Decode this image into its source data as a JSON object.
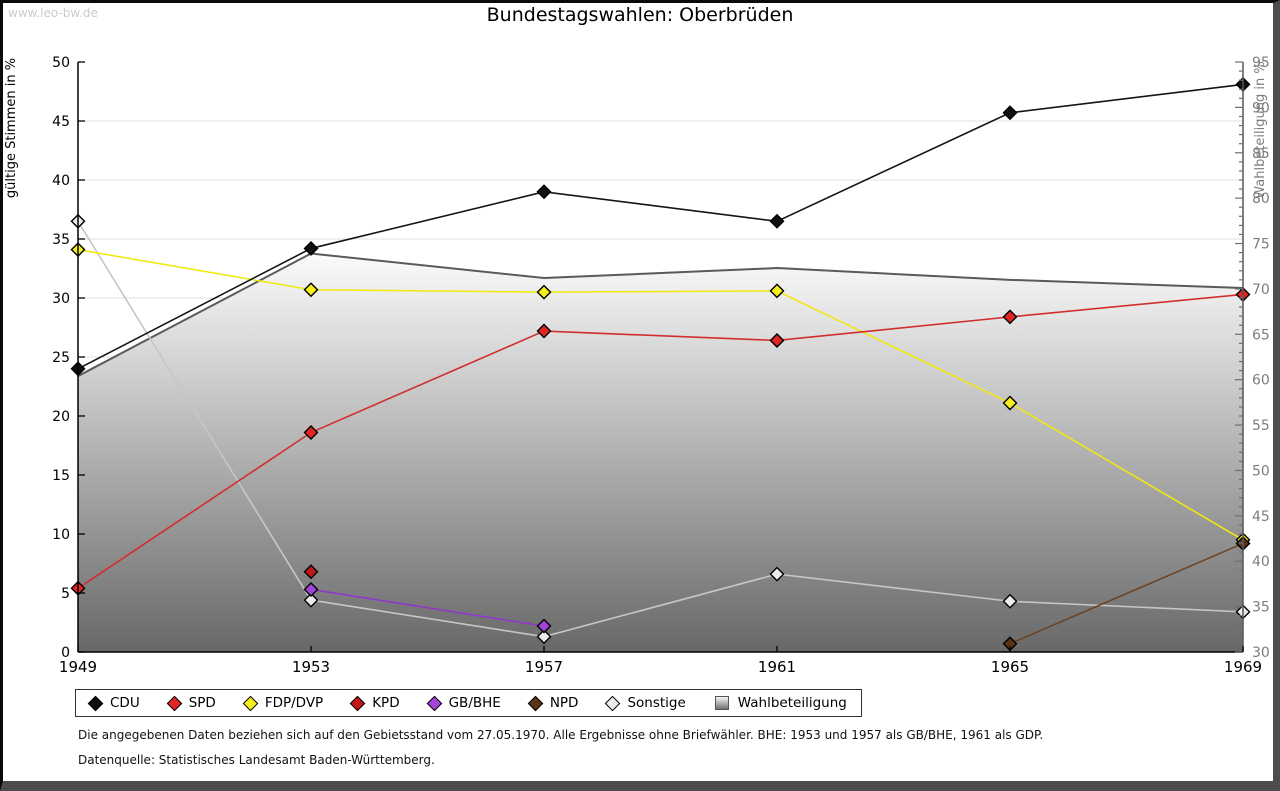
{
  "watermark": "www.leo-bw.de",
  "title": "Bundestagswahlen: Oberbrüden",
  "chart_data": {
    "type": "line",
    "title": "Bundestagswahlen: Oberbrüden",
    "x": [
      1949,
      1953,
      1957,
      1961,
      1965,
      1969
    ],
    "left_axis": {
      "label": "gültige Stimmen in %",
      "min": 0,
      "max": 50,
      "tick_step": 5
    },
    "right_axis": {
      "label": "Wahlbeteiligung in %",
      "min": 30,
      "max": 95,
      "tick_step": 5,
      "minor_step": 1
    },
    "grid": "horizontal",
    "series": [
      {
        "name": "Sonstige",
        "axis": "left",
        "line_color": "#c6c6c6",
        "marker_color": "#ececec",
        "values": [
          36.5,
          4.4,
          1.3,
          6.6,
          4.3,
          3.4
        ]
      },
      {
        "name": "FDP/DVP",
        "axis": "left",
        "line_color": "#efe913",
        "marker_color": "#f5ef1e",
        "values": [
          34.1,
          30.7,
          30.5,
          30.6,
          21.1,
          9.5
        ]
      },
      {
        "name": "SPD",
        "axis": "left",
        "line_color": "#d12f2f",
        "marker_color": "#e02525",
        "values": [
          5.4,
          18.6,
          27.2,
          26.4,
          28.4,
          30.3
        ]
      },
      {
        "name": "KPD",
        "axis": "left",
        "line_color": "#b21515",
        "marker_color": "#c01818",
        "values": [
          null,
          6.8,
          null,
          null,
          null,
          null
        ]
      },
      {
        "name": "GB/BHE",
        "axis": "left",
        "line_color": "#9138cb",
        "marker_color": "#a144d8",
        "values": [
          null,
          5.3,
          2.2,
          null,
          null,
          null
        ]
      },
      {
        "name": "NPD",
        "axis": "left",
        "line_color": "#6d4526",
        "marker_color": "#5a3419",
        "values": [
          null,
          null,
          null,
          null,
          0.7,
          9.2
        ]
      },
      {
        "name": "CDU",
        "axis": "left",
        "line_color": "#141414",
        "marker_color": "#101010",
        "values": [
          24.0,
          34.2,
          39.0,
          36.5,
          45.7,
          48.1
        ]
      }
    ],
    "area": {
      "name": "Wahlbeteiligung",
      "axis": "right",
      "values": [
        60.4,
        73.9,
        71.2,
        72.3,
        71.0,
        70.1
      ],
      "fill_top": "#fbfbfb",
      "fill_bottom": "#686868",
      "stroke": "#5a5a5a"
    },
    "legend_position": "bottom"
  },
  "legend": [
    {
      "label": "CDU",
      "marker": "diamond",
      "color": "#101010"
    },
    {
      "label": "SPD",
      "marker": "diamond",
      "color": "#e02525"
    },
    {
      "label": "FDP/DVP",
      "marker": "diamond",
      "color": "#f5ef1e"
    },
    {
      "label": "KPD",
      "marker": "diamond",
      "color": "#c01818"
    },
    {
      "label": "GB/BHE",
      "marker": "diamond",
      "color": "#a144d8"
    },
    {
      "label": "NPD",
      "marker": "diamond",
      "color": "#5a3419"
    },
    {
      "label": "Sonstige",
      "marker": "diamond",
      "color": "#ececec"
    },
    {
      "label": "Wahlbeteiligung",
      "marker": "square",
      "color": "#9a9a9a"
    }
  ],
  "footnotes": {
    "line1": "Die angegebenen Daten beziehen sich auf den Gebietsstand vom 27.05.1970. Alle Ergebnisse ohne Briefwähler. BHE: 1953 und 1957 als GB/BHE, 1961 als GDP.",
    "line2": "Datenquelle: Statistisches Landesamt Baden-Württemberg."
  }
}
